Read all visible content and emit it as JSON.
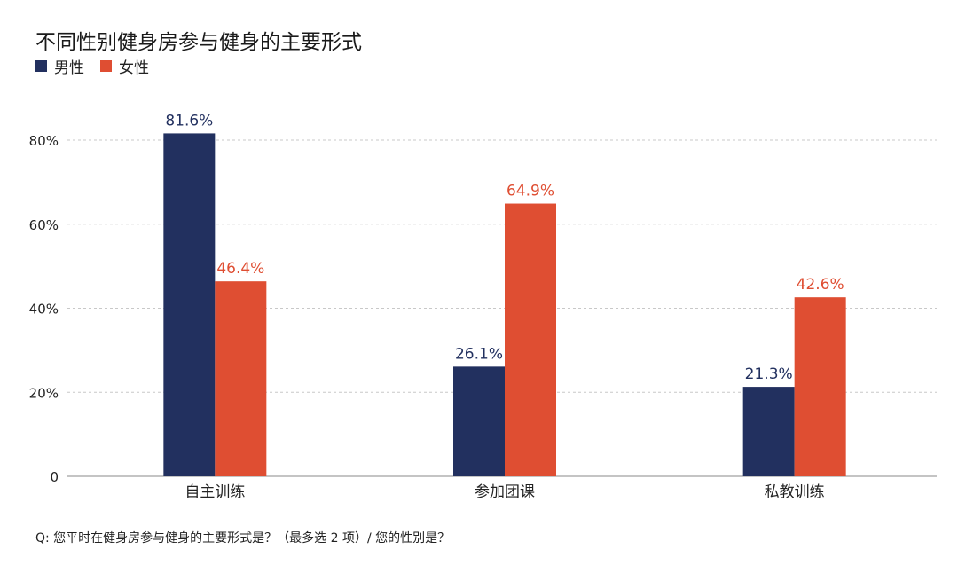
{
  "chart_data": {
    "type": "bar",
    "title": "不同性别健身房参与健身的主要形式",
    "categories": [
      "自主训练",
      "参加团课",
      "私教训练"
    ],
    "series": [
      {
        "name": "男性",
        "values": [
          81.6,
          26.1,
          21.3
        ],
        "color": "#22305f"
      },
      {
        "name": "女性",
        "values": [
          46.4,
          64.9,
          42.6
        ],
        "color": "#df4e32"
      }
    ],
    "ylim": [
      0,
      80
    ],
    "yticks": [
      0,
      20,
      40,
      60,
      80
    ],
    "ytick_labels": [
      "0",
      "20%",
      "40%",
      "60%",
      "80%"
    ],
    "value_suffix": "%",
    "grid": true,
    "legend_position": "top-left",
    "footnote": "Q: 您平时在健身房参与健身的主要形式是？（最多选 2 项）/ 您的性别是？"
  }
}
